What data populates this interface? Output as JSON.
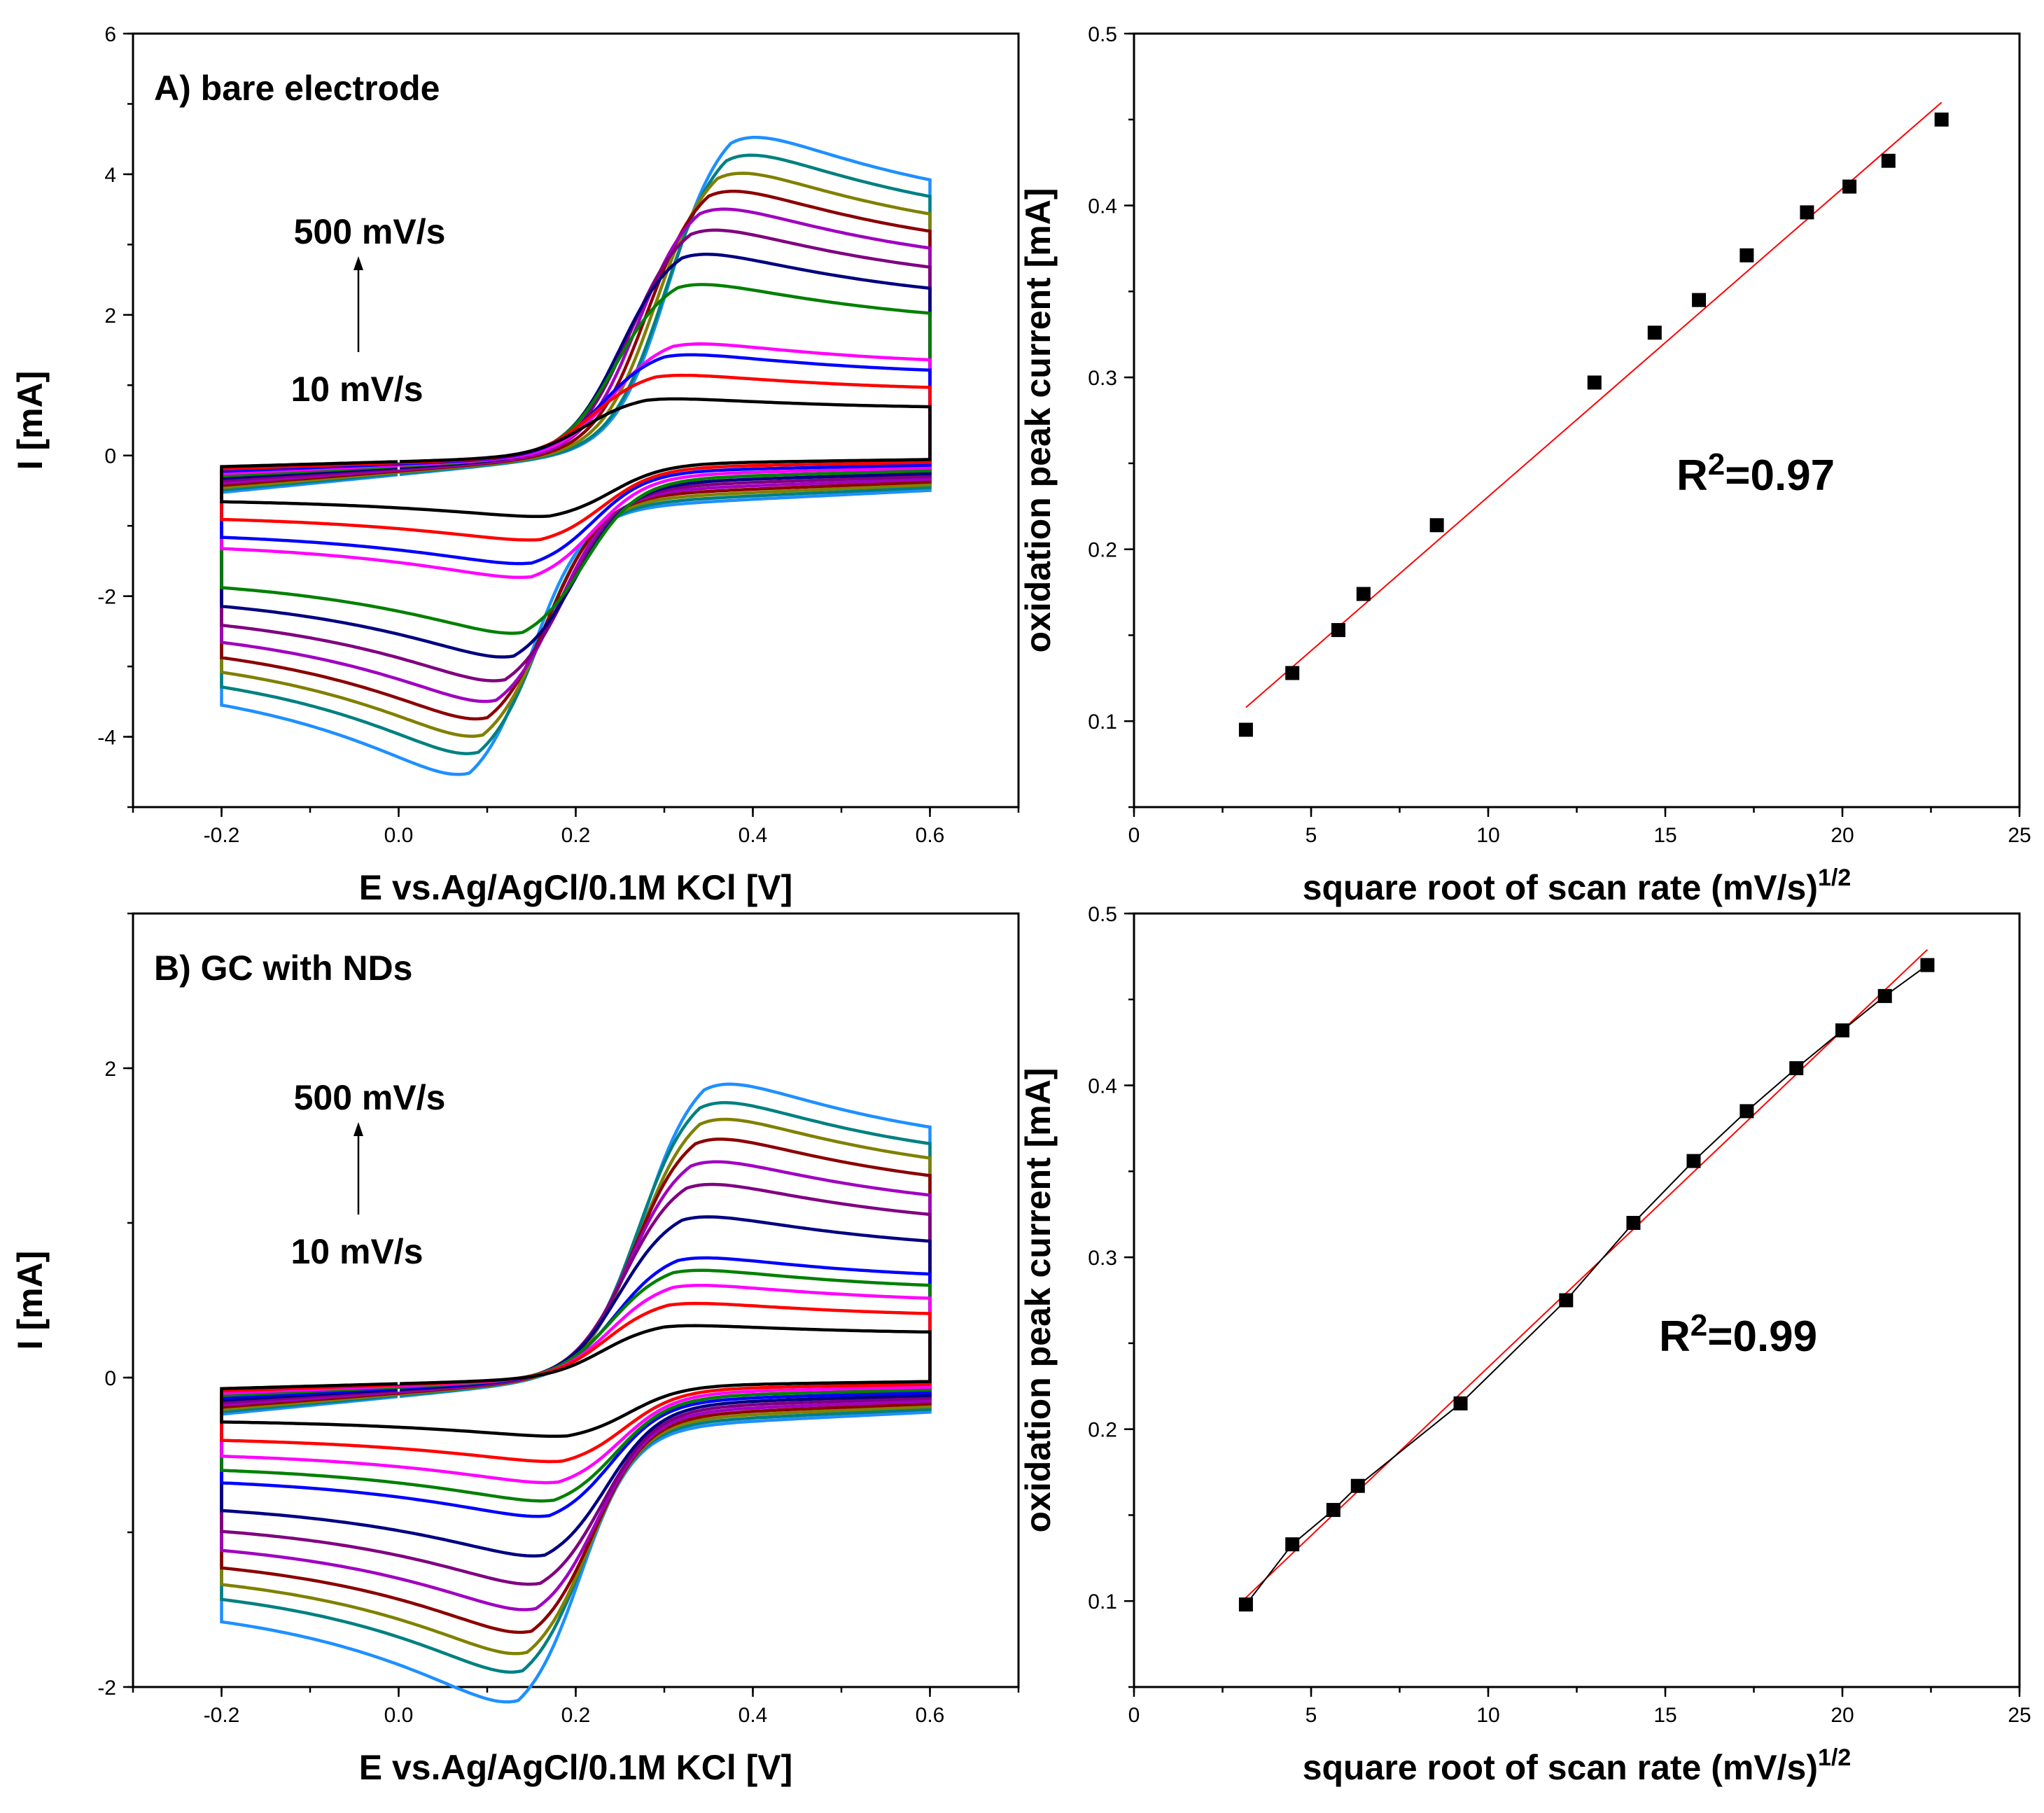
{
  "chart_data": [
    {
      "id": "A",
      "type": "line",
      "panel_label": "A)  bare electrode",
      "xlabel": "E vs.Ag/AgCl/0.1M KCl [V]",
      "ylabel": "I [mA]",
      "xlim": [
        -0.3,
        0.7
      ],
      "ylim": [
        -5,
        6
      ],
      "xticks": [
        -0.2,
        0.0,
        0.2,
        0.4,
        0.6
      ],
      "xtick_labels": [
        "-0.2",
        "0.0",
        "0.2",
        "0.4",
        "0.6"
      ],
      "yticks": [
        -4,
        -2,
        0,
        2,
        4,
        6
      ],
      "ytick_labels": [
        "-4",
        "-2",
        "0",
        "2",
        "4",
        "6"
      ],
      "annotation_top": "500 mV/s",
      "annotation_bottom": "10 mV/s",
      "peak_oxidation_potential_V": [
        0.28,
        0.29,
        0.3,
        0.31,
        0.315,
        0.32,
        0.33,
        0.34,
        0.35,
        0.36,
        0.37,
        0.375
      ],
      "peak_oxidation_current_mA": [
        0.85,
        1.2,
        1.5,
        1.65,
        2.55,
        3.0,
        3.35,
        3.65,
        3.9,
        4.15,
        4.4,
        4.65
      ],
      "peak_reduction_potential_V": [
        0.17,
        0.16,
        0.15,
        0.15,
        0.14,
        0.13,
        0.12,
        0.11,
        0.1,
        0.095,
        0.09,
        0.08
      ],
      "peak_reduction_current_mA": [
        -0.8,
        -1.1,
        -1.4,
        -1.55,
        -2.35,
        -2.65,
        -2.95,
        -3.2,
        -3.4,
        -3.6,
        -3.8,
        -4.05
      ],
      "series_colors": [
        "#000000",
        "#ff0000",
        "#0000ff",
        "#ff00ff",
        "#008000",
        "#000080",
        "#800080",
        "#a000c0",
        "#8b0000",
        "#808000",
        "#008080",
        "#1e90ff",
        "#b8860b"
      ]
    },
    {
      "id": "B",
      "type": "scatter",
      "xlabel": "square root of scan rate (mV/s)",
      "xlabel_sup": "1/2",
      "ylabel": "oxidation peak current [mA]",
      "xlim": [
        0,
        25
      ],
      "ylim": [
        0.05,
        0.5
      ],
      "xticks": [
        0,
        5,
        10,
        15,
        20,
        25
      ],
      "xtick_labels": [
        "0",
        "5",
        "10",
        "15",
        "20",
        "25"
      ],
      "yticks": [
        0.1,
        0.2,
        0.3,
        0.4,
        0.5
      ],
      "ytick_labels": [
        "0.1",
        "0.2",
        "0.3",
        "0.4",
        "0.5"
      ],
      "x": [
        3.16,
        4.47,
        5.77,
        6.48,
        8.55,
        13.0,
        14.7,
        15.95,
        17.3,
        19.0,
        20.2,
        21.3,
        22.8
      ],
      "y": [
        0.095,
        0.128,
        0.153,
        0.174,
        0.214,
        0.297,
        0.326,
        0.345,
        0.371,
        0.396,
        0.411,
        0.426,
        0.45
      ],
      "fit_line": {
        "x": [
          3.16,
          22.8
        ],
        "y": [
          0.108,
          0.46
        ]
      },
      "r2_base": "R",
      "r2_sup": "2",
      "r2_value": "=0.97"
    },
    {
      "id": "C",
      "type": "line",
      "panel_label": "B)  GC with NDs",
      "xlabel": "E vs.Ag/AgCl/0.1M KCl [V]",
      "ylabel": "I [mA]",
      "xlim": [
        -0.3,
        0.7
      ],
      "ylim": [
        -2,
        3
      ],
      "xticks": [
        -0.2,
        0.0,
        0.2,
        0.4,
        0.6
      ],
      "xtick_labels": [
        "-0.2",
        "0.0",
        "0.2",
        "0.4",
        "0.6"
      ],
      "yticks": [
        -2,
        0,
        2
      ],
      "ytick_labels": [
        "-2",
        "0",
        "2"
      ],
      "annotation_top": "500 mV/s",
      "annotation_bottom": "10 mV/s",
      "peak_oxidation_potential_V": [
        0.3,
        0.305,
        0.31,
        0.31,
        0.315,
        0.32,
        0.325,
        0.33,
        0.335,
        0.34,
        0.34,
        0.345
      ],
      "peak_oxidation_current_mA": [
        0.35,
        0.5,
        0.62,
        0.72,
        0.8,
        1.08,
        1.3,
        1.45,
        1.6,
        1.73,
        1.84,
        1.96
      ],
      "peak_reduction_potential_V": [
        0.19,
        0.185,
        0.18,
        0.175,
        0.17,
        0.165,
        0.16,
        0.155,
        0.15,
        0.145,
        0.14,
        0.135
      ],
      "peak_reduction_current_mA": [
        -0.35,
        -0.5,
        -0.62,
        -0.72,
        -0.8,
        -1.05,
        -1.22,
        -1.37,
        -1.5,
        -1.62,
        -1.72,
        -1.9
      ],
      "series_colors": [
        "#000000",
        "#ff0000",
        "#ff00ff",
        "#008000",
        "#0000ff",
        "#000080",
        "#800080",
        "#a000c0",
        "#8b0000",
        "#808000",
        "#008080",
        "#1e90ff",
        "#b8860b"
      ]
    },
    {
      "id": "D",
      "type": "scatter",
      "xlabel": "square root of scan rate (mV/s)",
      "xlabel_sup": "1/2",
      "ylabel": "oxidation peak current [mA]",
      "xlim": [
        0,
        25
      ],
      "ylim": [
        0.05,
        0.5
      ],
      "xticks": [
        0,
        5,
        10,
        15,
        20,
        25
      ],
      "xtick_labels": [
        "0",
        "5",
        "10",
        "15",
        "20",
        "25"
      ],
      "yticks": [
        0.1,
        0.2,
        0.3,
        0.4,
        0.5
      ],
      "ytick_labels": [
        "0.1",
        "0.2",
        "0.3",
        "0.4",
        "0.5"
      ],
      "x": [
        3.16,
        4.47,
        5.63,
        6.32,
        9.22,
        12.2,
        14.1,
        15.8,
        17.3,
        18.7,
        20.0,
        21.2,
        22.4
      ],
      "y": [
        0.098,
        0.133,
        0.153,
        0.167,
        0.215,
        0.275,
        0.32,
        0.356,
        0.385,
        0.41,
        0.432,
        0.452,
        0.47
      ],
      "fit_line": {
        "x": [
          3.16,
          22.4
        ],
        "y": [
          0.102,
          0.479
        ]
      },
      "r2_base": "R",
      "r2_sup": "2",
      "r2_value": "=0.99"
    }
  ]
}
